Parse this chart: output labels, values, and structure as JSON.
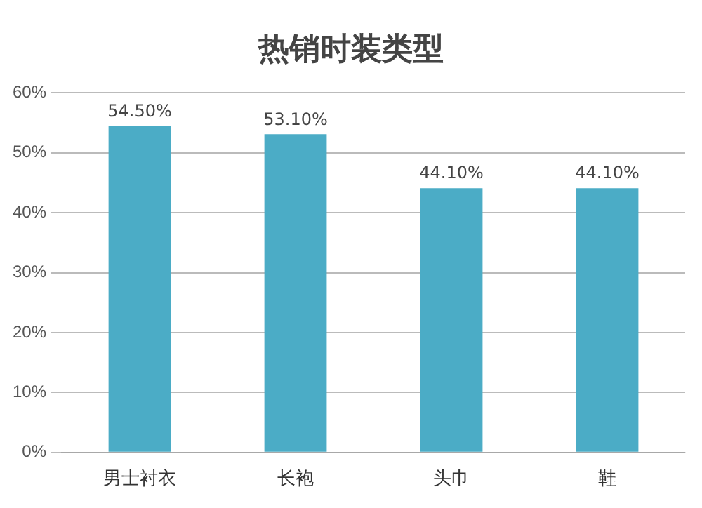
{
  "chart_data": {
    "type": "bar",
    "title": "热销时装类型",
    "categories": [
      "男士衬衣",
      "长袍",
      "头巾",
      "鞋"
    ],
    "values": [
      54.5,
      53.1,
      44.1,
      44.1
    ],
    "value_labels": [
      "54.50%",
      "53.10%",
      "44.10%",
      "44.10%"
    ],
    "color": "#4bacc6",
    "ylim": [
      0,
      60
    ],
    "yticks": [
      {
        "value": 0,
        "label": "0%"
      },
      {
        "value": 10,
        "label": "10%"
      },
      {
        "value": 20,
        "label": "20%"
      },
      {
        "value": 30,
        "label": "30%"
      },
      {
        "value": 40,
        "label": "40%"
      },
      {
        "value": 50,
        "label": "50%"
      },
      {
        "value": 60,
        "label": "60%"
      }
    ],
    "grid": "y",
    "legend": false
  }
}
